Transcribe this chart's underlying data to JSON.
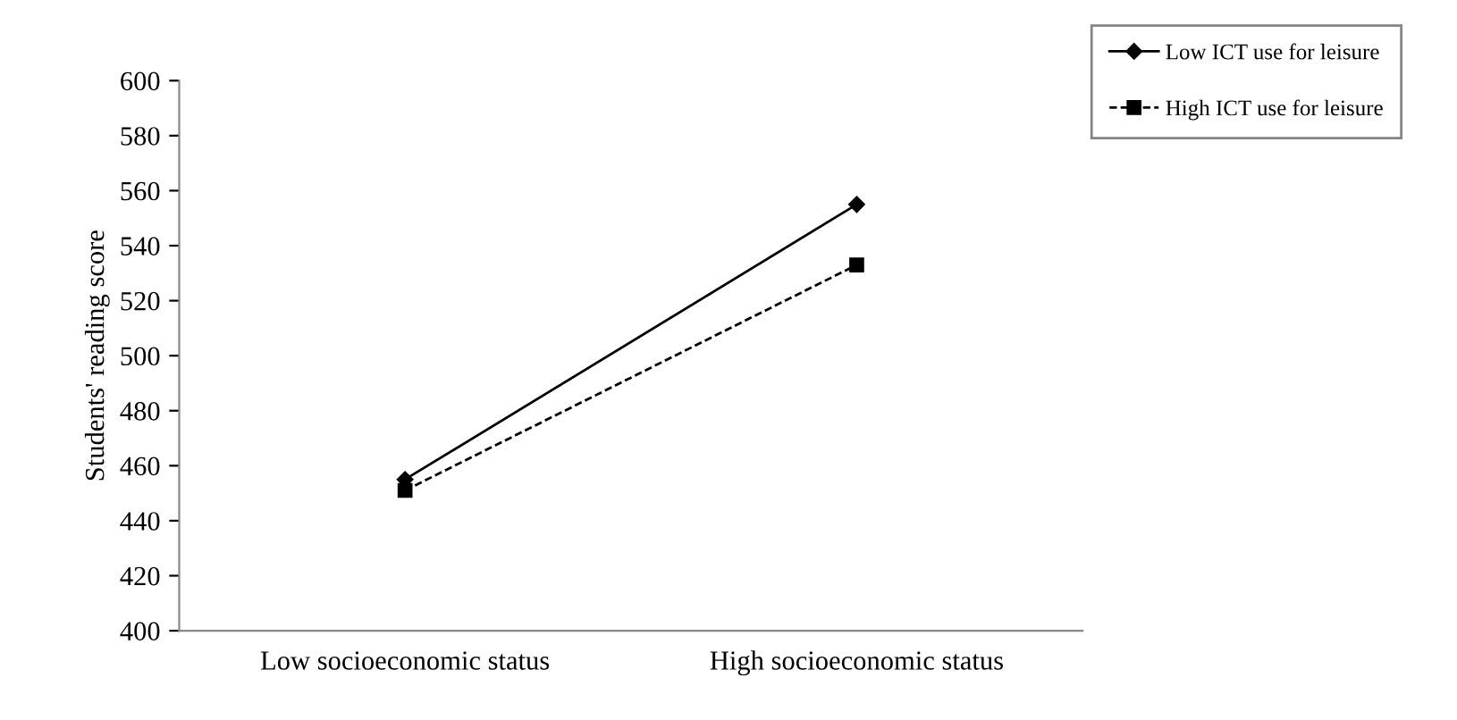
{
  "chart_data": {
    "type": "line",
    "ylabel": "Students' reading score",
    "categories": [
      "Low socioeconomic status",
      "High socioeconomic status"
    ],
    "series": [
      {
        "name": "Low ICT use for leisure",
        "color": "#000000",
        "values": [
          455,
          555
        ],
        "marker": "diamond",
        "line_style": "solid"
      },
      {
        "name": "High ICT use for leisure",
        "color": "#000000",
        "values": [
          451,
          533
        ],
        "marker": "square",
        "line_style": "dashed"
      }
    ],
    "ylim": [
      400,
      600
    ],
    "yticks": [
      400,
      420,
      440,
      460,
      480,
      500,
      520,
      540,
      560,
      580,
      600
    ],
    "grid": false,
    "legend": "top right"
  }
}
